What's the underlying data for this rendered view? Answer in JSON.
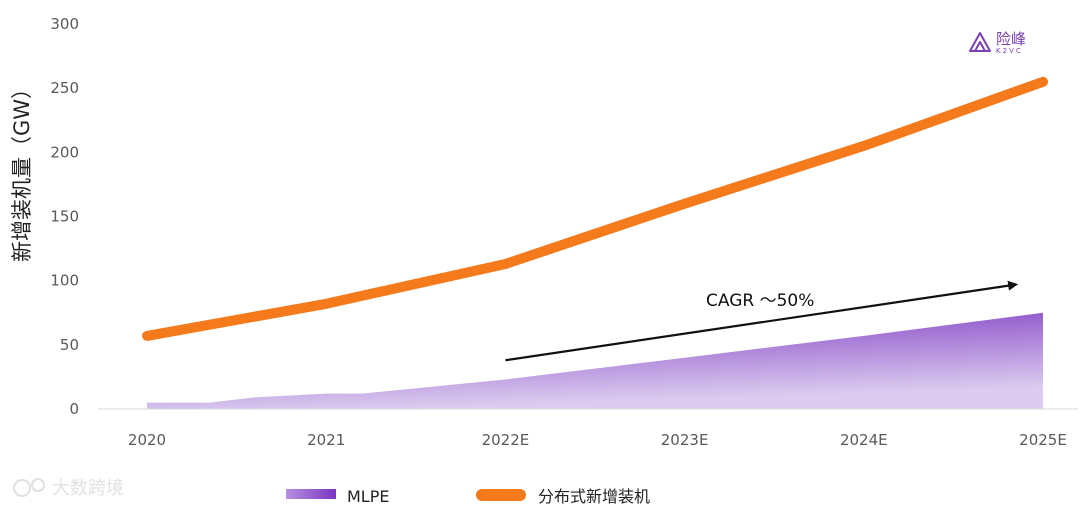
{
  "chart_data": {
    "type": "area",
    "title": "",
    "categories": [
      "2020",
      "2021",
      "2022E",
      "2023E",
      "2024E",
      "2025E"
    ],
    "ylabel": "新增装机量（GW）",
    "xlabel": "",
    "ylim": [
      0,
      300
    ],
    "yticks": [
      0,
      50,
      100,
      150,
      200,
      250,
      300
    ],
    "grid": false,
    "legend_position": "bottom",
    "series": [
      {
        "name": "MLPE",
        "kind": "area",
        "color": "#7b35c1",
        "x": [
          0,
          0.35,
          0.6,
          1,
          1.2,
          2,
          3,
          4,
          5
        ],
        "values": [
          5,
          5,
          9,
          12,
          12,
          23,
          40,
          57,
          75
        ]
      },
      {
        "name": "分布式新增装机",
        "kind": "line",
        "color": "#f47a1c",
        "x": [
          0,
          1,
          2,
          3,
          4,
          5
        ],
        "values": [
          57,
          82,
          113,
          160,
          205,
          255
        ]
      }
    ],
    "annotation": {
      "text": "CAGR ～50%",
      "arrow_from": [
        2,
        38
      ],
      "arrow_to": [
        4.85,
        97
      ]
    }
  },
  "logo": {
    "name": "险峰",
    "sub": "K2VC"
  },
  "watermark": {
    "text": "大数跨境"
  }
}
